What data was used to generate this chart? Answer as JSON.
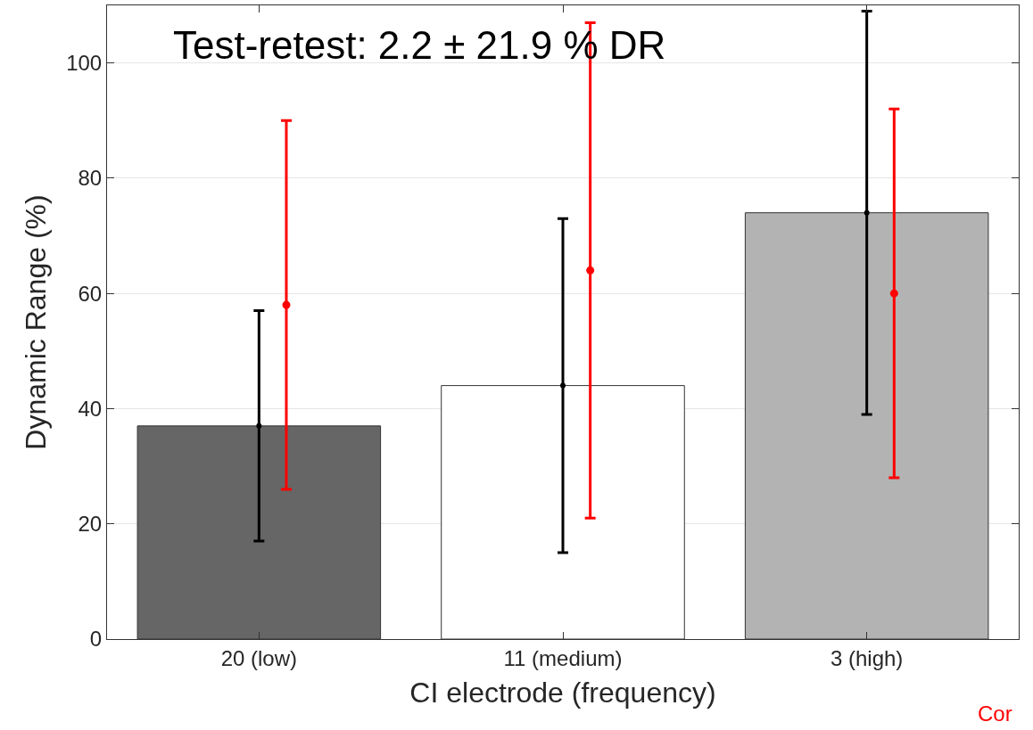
{
  "chart_data": {
    "type": "bar",
    "xlabel": "CI electrode (frequency)",
    "ylabel": "Dynamic Range (%)",
    "categories": [
      "20 (low)",
      "11 (medium)",
      "3 (high)"
    ],
    "series": [
      {
        "colors": [
          "#666666",
          "#ffffff",
          "#b3b3b3"
        ],
        "values": [
          37,
          44,
          74
        ]
      },
      {
        "type": "scatter",
        "color": "#000000",
        "marker": "circle",
        "values": [
          37,
          44,
          74
        ],
        "errors": [
          [
            17,
            57
          ],
          [
            15,
            73
          ],
          [
            39,
            109
          ]
        ]
      },
      {
        "type": "scatter",
        "color": "#ff0000",
        "marker": "circle",
        "values": [
          58,
          64,
          60
        ],
        "errors": [
          [
            26,
            90
          ],
          [
            21,
            107
          ],
          [
            28,
            92
          ]
        ]
      }
    ],
    "ylim": [
      0,
      110
    ],
    "yticks": [
      0,
      20,
      40,
      60,
      80,
      100
    ],
    "grid": "y",
    "annotations": [
      "Test-retest: 2.2 ± 21.9 % DR",
      "Cor"
    ]
  }
}
